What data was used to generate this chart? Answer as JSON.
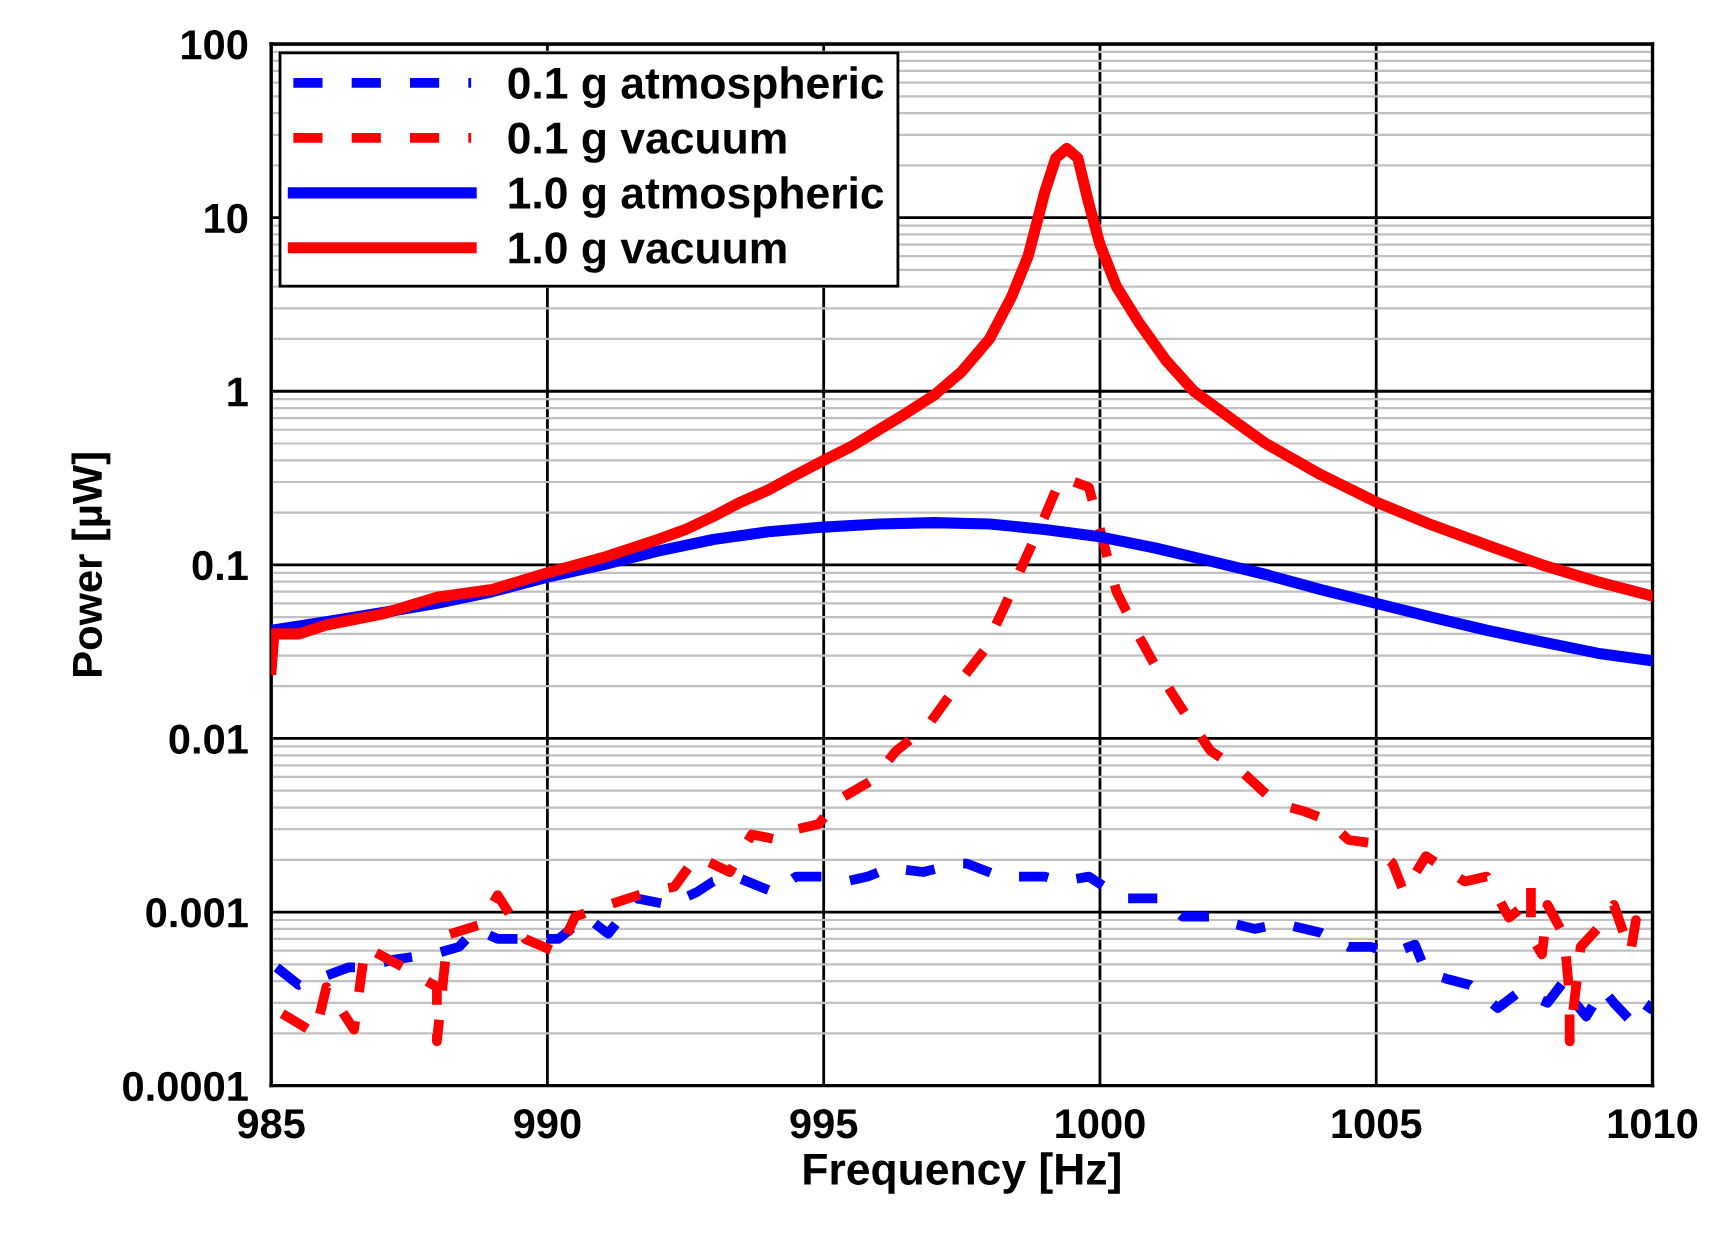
{
  "chart_data": {
    "type": "line",
    "xlabel": "Frequency [Hz]",
    "ylabel": "Power [µW]",
    "log": "y",
    "xlim": [
      985,
      1010
    ],
    "xticks": [
      985,
      990,
      995,
      1000,
      1005,
      1010
    ],
    "ylim": [
      0.0001,
      100
    ],
    "yticks": [
      0.0001,
      0.001,
      0.01,
      0.1,
      1,
      10,
      100
    ],
    "grid": true,
    "legend": "top left",
    "series": [
      {
        "name": "0.1 g atmospheric",
        "color": "#0000ff",
        "line_style": "dashed",
        "x": [
          985.1,
          985.5,
          986.0,
          986.4,
          986.7,
          987.2,
          988.0,
          988.4,
          988.7,
          989.1,
          989.8,
          990.2,
          990.7,
          991.1,
          991.6,
          992.2,
          992.7,
          993.0,
          993.4,
          994.1,
          994.5,
          995.0,
          995.4,
          995.8,
          996.2,
          996.8,
          997.4,
          997.6,
          998.2,
          998.6,
          999.0,
          999.3,
          999.8,
          1000.4,
          1001.1,
          1001.5,
          1002.1,
          1002.4,
          1002.8,
          1003.3,
          1004.0,
          1004.5,
          1004.9,
          1005.3,
          1005.7,
          1005.9,
          1006.3,
          1006.7,
          1007.2,
          1007.6,
          1008.1,
          1008.4,
          1008.6,
          1008.8,
          1009.1,
          1009.3,
          1009.7,
          1010.0
        ],
        "values": [
          0.00048,
          0.00038,
          0.00043,
          0.00048,
          0.00048,
          0.00053,
          0.00058,
          0.00063,
          0.0008,
          0.0007,
          0.0007,
          0.0007,
          0.00094,
          0.00075,
          0.0012,
          0.0011,
          0.0013,
          0.0015,
          0.0016,
          0.0013,
          0.0016,
          0.0016,
          0.0015,
          0.0016,
          0.0018,
          0.0017,
          0.0019,
          0.0019,
          0.0016,
          0.0016,
          0.0016,
          0.0015,
          0.0016,
          0.0012,
          0.0012,
          0.00094,
          0.00094,
          0.00086,
          0.0008,
          0.00086,
          0.00076,
          0.00063,
          0.00063,
          0.00058,
          0.00065,
          0.00045,
          0.00041,
          0.00038,
          0.00028,
          0.00035,
          0.0003,
          0.0004,
          0.0003,
          0.00025,
          0.00036,
          0.0003,
          0.00022,
          0.0003
        ]
      },
      {
        "name": "0.1 g vacuum",
        "color": "#ff0000",
        "line_style": "dashed",
        "x": [
          985.2,
          985.8,
          986.0,
          986.5,
          986.7,
          987.4,
          988.0,
          988.0,
          988.2,
          988.8,
          989.1,
          989.6,
          990.2,
          990.5,
          991.1,
          991.8,
          992.3,
          992.7,
          993.3,
          993.7,
          994.2,
          994.5,
          994.9,
          995.3,
          995.9,
          996.3,
          996.9,
          997.4,
          997.9,
          998.3,
          998.6,
          999.0,
          999.3,
          999.8,
          1000.3,
          1000.7,
          1001.1,
          1001.6,
          1002.0,
          1002.6,
          1003.2,
          1003.7,
          1004.1,
          1004.5,
          1004.9,
          1005.3,
          1005.5,
          1005.9,
          1006.6,
          1007.0,
          1007.4,
          1007.7,
          1007.8,
          1007.8,
          1008.0,
          1008.1,
          1008.4,
          1008.5,
          1008.5,
          1008.7,
          1009.0,
          1009.3,
          1009.6,
          1009.7,
          1009.9
        ],
        "values": [
          0.00026,
          0.0002,
          0.00037,
          0.00021,
          0.00063,
          0.00048,
          0.00037,
          0.00018,
          0.00074,
          0.00085,
          0.00125,
          0.0007,
          0.00058,
          0.00094,
          0.0011,
          0.0013,
          0.0014,
          0.0021,
          0.0017,
          0.0028,
          0.0026,
          0.003,
          0.0032,
          0.0045,
          0.0058,
          0.0084,
          0.012,
          0.02,
          0.032,
          0.06,
          0.1,
          0.19,
          0.32,
          0.28,
          0.07,
          0.039,
          0.023,
          0.013,
          0.0085,
          0.0063,
          0.0042,
          0.0038,
          0.0034,
          0.0026,
          0.0025,
          0.0019,
          0.0013,
          0.0021,
          0.0015,
          0.0016,
          0.00093,
          0.0011,
          0.0014,
          0.00073,
          0.00057,
          0.0011,
          0.00073,
          0.00033,
          0.00018,
          0.00063,
          0.0008,
          0.0011,
          0.00058,
          0.0009,
          0.00063
        ]
      },
      {
        "name": "1.0 g atmospheric",
        "color": "#0000ff",
        "line_style": "solid",
        "x": [
          985,
          986,
          987,
          988,
          989,
          990,
          991,
          992,
          993,
          994,
          995,
          996,
          997,
          998,
          999,
          1000,
          1001,
          1002,
          1003,
          1004,
          1005,
          1006,
          1007,
          1008,
          1009,
          1010
        ],
        "values": [
          0.042,
          0.047,
          0.053,
          0.06,
          0.07,
          0.085,
          0.1,
          0.12,
          0.14,
          0.155,
          0.165,
          0.172,
          0.175,
          0.172,
          0.16,
          0.145,
          0.125,
          0.105,
          0.088,
          0.072,
          0.06,
          0.05,
          0.042,
          0.036,
          0.031,
          0.028
        ]
      },
      {
        "name": "1.0 g vacuum",
        "color": "#ff0000",
        "line_style": "solid",
        "x": [
          985,
          985.05,
          985.5,
          986,
          987,
          988,
          989,
          990,
          991,
          992,
          992.5,
          993,
          993.5,
          994,
          994.5,
          995,
          995.5,
          996,
          996.5,
          997,
          997.5,
          998,
          998.4,
          998.7,
          999,
          999.2,
          999.4,
          999.6,
          999.8,
          1000,
          1000.3,
          1000.7,
          1001.2,
          1001.7,
          1002.5,
          1003,
          1004,
          1005,
          1006,
          1007,
          1008,
          1009,
          1010
        ],
        "values": [
          0.025,
          0.04,
          0.04,
          0.045,
          0.052,
          0.065,
          0.072,
          0.09,
          0.11,
          0.14,
          0.16,
          0.19,
          0.23,
          0.27,
          0.33,
          0.4,
          0.48,
          0.6,
          0.75,
          0.95,
          1.3,
          2.0,
          3.5,
          6,
          14,
          22,
          25,
          22,
          12,
          7,
          4,
          2.5,
          1.5,
          1.0,
          0.65,
          0.5,
          0.33,
          0.23,
          0.17,
          0.13,
          0.1,
          0.08,
          0.066
        ]
      }
    ]
  }
}
